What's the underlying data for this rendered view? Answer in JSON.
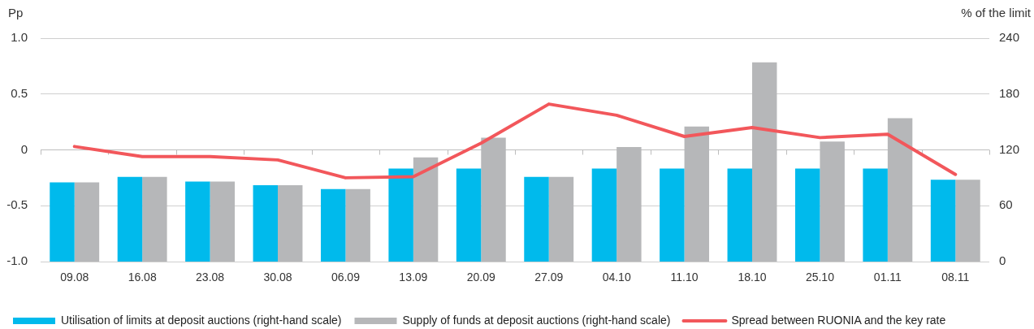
{
  "chart_data": {
    "type": "bar",
    "categories": [
      "09.08",
      "16.08",
      "23.08",
      "30.08",
      "06.09",
      "13.09",
      "20.09",
      "27.09",
      "04.10",
      "11.10",
      "18.10",
      "25.10",
      "01.11",
      "08.11"
    ],
    "ylabel": "Pp",
    "y2label": "% of the limit",
    "ylim": [
      -1.0,
      1.0
    ],
    "yticks": [
      {
        "value": -1.0,
        "label": "-1.0"
      },
      -0.5,
      0,
      0.5,
      {
        "value": 1.0,
        "label": "1.0"
      }
    ],
    "y2lim": [
      0,
      240
    ],
    "y2ticks": [
      0,
      60,
      120,
      180,
      240
    ],
    "series": [
      {
        "name": "Utilisation of limits at deposit auctions (right-hand scale)",
        "color": "#00baec",
        "axis": "y2",
        "values": [
          85,
          91,
          86,
          82,
          78,
          100,
          100,
          91,
          100,
          100,
          100,
          100,
          100,
          88
        ]
      },
      {
        "name": "Supply of funds at deposit auctions (right-hand scale)",
        "color": "#b6b7b9",
        "axis": "y2",
        "values": [
          85,
          91,
          86,
          82,
          78,
          112,
          133,
          91,
          123,
          145,
          214,
          129,
          154,
          88
        ]
      },
      {
        "name": "Spread between RUONIA and the key rate",
        "type": "line",
        "color": "#f2575b",
        "marker": "none",
        "line_style": "solid",
        "values": [
          0.03,
          -0.06,
          -0.06,
          -0.09,
          -0.25,
          -0.24,
          0.06,
          0.41,
          0.31,
          0.12,
          0.2,
          0.11,
          0.14,
          -0.22
        ]
      }
    ],
    "grid": "y",
    "legend": "bottom"
  }
}
